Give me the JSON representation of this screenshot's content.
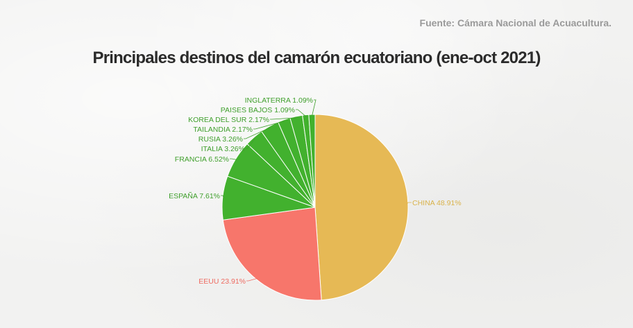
{
  "header": {
    "source": "Fuente: Cámara Nacional de Acuacultura."
  },
  "chart_data": {
    "type": "pie",
    "title": "Principales destinos del camarón ecuatoriano (ene-oct 2021)",
    "slices": [
      {
        "label": "CHINA",
        "value": 48.91,
        "display": "CHINA 48.91%",
        "color": "#e6b955",
        "label_color": "#d9b24a"
      },
      {
        "label": "EEUU",
        "value": 23.91,
        "display": "EEUU 23.91%",
        "color": "#f7766b",
        "label_color": "#ee6a60"
      },
      {
        "label": "ESPAÑA",
        "value": 7.61,
        "display": "ESPAÑA 7.61%",
        "color": "#42b12e",
        "label_color": "#3f9f2c"
      },
      {
        "label": "FRANCIA",
        "value": 6.52,
        "display": "FRANCIA 6.52%",
        "color": "#42b12e",
        "label_color": "#3f9f2c"
      },
      {
        "label": "ITALIA",
        "value": 3.26,
        "display": "ITALIA 3.26%",
        "color": "#42b12e",
        "label_color": "#3f9f2c"
      },
      {
        "label": "RUSIA",
        "value": 3.26,
        "display": "RUSIA 3.26%",
        "color": "#42b12e",
        "label_color": "#3f9f2c"
      },
      {
        "label": "TAILANDIA",
        "value": 2.17,
        "display": "TAILANDIA 2.17%",
        "color": "#42b12e",
        "label_color": "#3f9f2c"
      },
      {
        "label": "KOREA DEL SUR",
        "value": 2.17,
        "display": "KOREA DEL SUR 2.17%",
        "color": "#42b12e",
        "label_color": "#3f9f2c"
      },
      {
        "label": "PAISES BAJOS",
        "value": 1.09,
        "display": "PAISES BAJOS 1.09%",
        "color": "#42b12e",
        "label_color": "#3f9f2c"
      },
      {
        "label": "INGLATERRA",
        "value": 1.09,
        "display": "INGLATERRA 1.09%",
        "color": "#42b12e",
        "label_color": "#3f9f2c"
      }
    ]
  }
}
